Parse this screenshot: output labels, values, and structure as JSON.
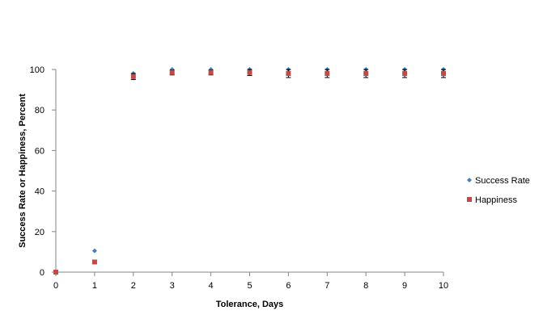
{
  "chart_data": {
    "type": "scatter",
    "title": "",
    "xlabel": "Tolerance,  Days",
    "ylabel": "Success  Rate or Happiness,  Percent",
    "xlim": [
      0,
      10
    ],
    "ylim": [
      0,
      100
    ],
    "x_ticks": [
      "0",
      "1",
      "2",
      "3",
      "4",
      "5",
      "6",
      "7",
      "8",
      "9",
      "10"
    ],
    "y_ticks": [
      "0",
      "20",
      "40",
      "60",
      "80",
      "100"
    ],
    "grid": false,
    "legend_position": "right",
    "series": [
      {
        "name": "Success Rate",
        "marker": "diamond",
        "color": "#4a7ebb",
        "x": [
          0,
          1,
          2,
          3,
          4,
          5,
          6,
          7,
          8,
          9,
          10
        ],
        "y": [
          0,
          10.5,
          98,
          100,
          100,
          100,
          100,
          100,
          100,
          100,
          100
        ]
      },
      {
        "name": "Happiness",
        "marker": "square",
        "color": "#be4b48",
        "x": [
          0,
          1,
          2,
          3,
          4,
          5,
          6,
          7,
          8,
          9,
          10
        ],
        "y": [
          0,
          5,
          96.5,
          98.5,
          98.5,
          98.5,
          98,
          98,
          98,
          98,
          98
        ],
        "error_low": [
          0,
          0.6,
          1.5,
          1.2,
          1.2,
          1.5,
          2,
          2,
          2,
          2,
          2
        ],
        "error_high": [
          0,
          0.6,
          1.5,
          1.2,
          1.2,
          1.5,
          2,
          2,
          2,
          2,
          2
        ]
      }
    ]
  }
}
